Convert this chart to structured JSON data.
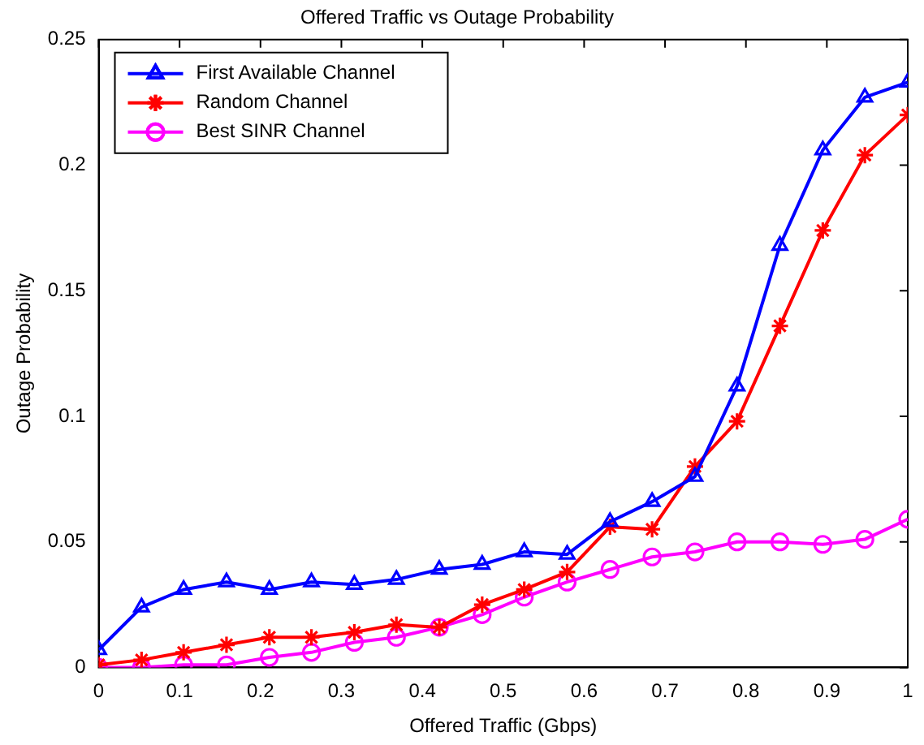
{
  "chart_data": {
    "type": "line",
    "title": "Offered Traffic vs Outage Probability",
    "xlabel": "Offered Traffic (Gbps)",
    "ylabel": "Outage Probability",
    "x": [
      0,
      0.053,
      0.105,
      0.158,
      0.211,
      0.263,
      0.316,
      0.368,
      0.421,
      0.474,
      0.526,
      0.579,
      0.632,
      0.684,
      0.737,
      0.789,
      0.842,
      0.895,
      0.947,
      1
    ],
    "series": [
      {
        "name": "First Available Channel",
        "color": "#0000ff",
        "marker": "triangle",
        "values": [
          0.007,
          0.024,
          0.031,
          0.034,
          0.031,
          0.034,
          0.033,
          0.035,
          0.039,
          0.041,
          0.046,
          0.045,
          0.058,
          0.066,
          0.076,
          0.112,
          0.168,
          0.206,
          0.227,
          0.233
        ]
      },
      {
        "name": "Random Channel",
        "color": "#ff0000",
        "marker": "cross",
        "values": [
          0.001,
          0.003,
          0.006,
          0.009,
          0.012,
          0.012,
          0.014,
          0.017,
          0.016,
          0.025,
          0.031,
          0.038,
          0.056,
          0.055,
          0.08,
          0.098,
          0.136,
          0.174,
          0.204,
          0.22
        ]
      },
      {
        "name": "Best SINR Channel",
        "color": "#ff00ff",
        "marker": "circle",
        "values": [
          0,
          0,
          0.001,
          0.001,
          0.004,
          0.006,
          0.01,
          0.012,
          0.016,
          0.021,
          0.028,
          0.034,
          0.039,
          0.044,
          0.046,
          0.05,
          0.05,
          0.049,
          0.051,
          0.059
        ]
      }
    ],
    "xlim": [
      0,
      1
    ],
    "xticks": [
      0,
      0.1,
      0.2,
      0.3,
      0.4,
      0.5,
      0.6,
      0.7,
      0.8,
      0.9,
      1
    ],
    "ylim": [
      0,
      0.25
    ],
    "yticks": [
      0,
      0.05,
      0.1,
      0.15,
      0.2,
      0.25
    ],
    "grid": false,
    "legend": "top left",
    "line_style": "solid"
  }
}
